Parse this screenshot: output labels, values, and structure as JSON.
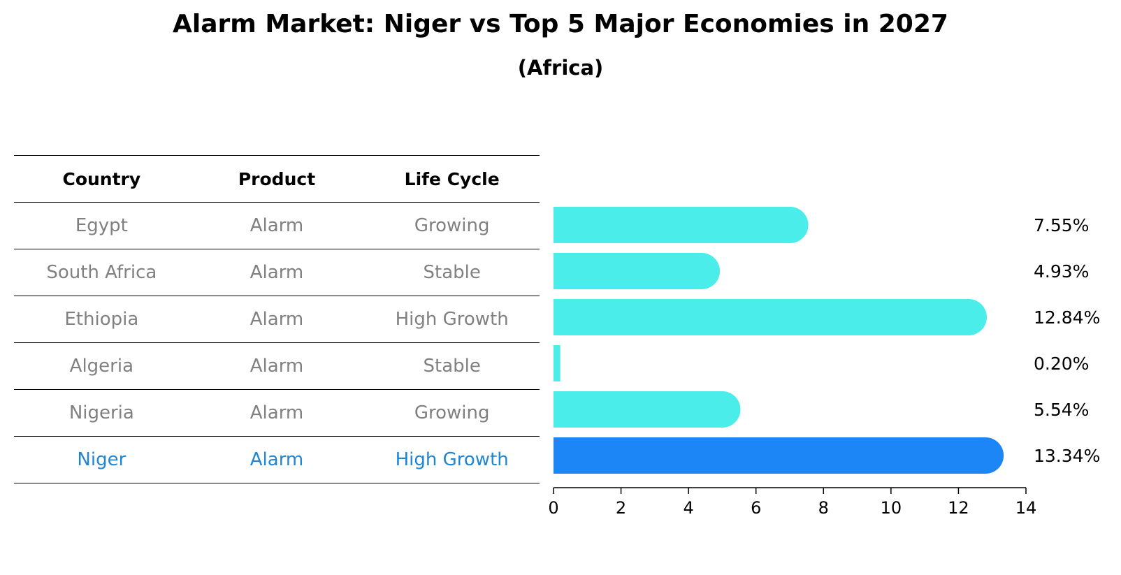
{
  "title": "Alarm Market: Niger vs Top 5 Major Economies in 2027",
  "subtitle": "(Africa)",
  "table": {
    "headers": [
      "Country",
      "Product",
      "Life Cycle"
    ],
    "rows": [
      {
        "country": "Egypt",
        "product": "Alarm",
        "life_cycle": "Growing"
      },
      {
        "country": "South Africa",
        "product": "Alarm",
        "life_cycle": "Stable"
      },
      {
        "country": "Ethiopia",
        "product": "Alarm",
        "life_cycle": "High Growth"
      },
      {
        "country": "Algeria",
        "product": "Alarm",
        "life_cycle": "Stable"
      },
      {
        "country": "Nigeria",
        "product": "Alarm",
        "life_cycle": "Growing"
      },
      {
        "country": "Niger",
        "product": "Alarm",
        "life_cycle": "High Growth"
      }
    ]
  },
  "chart_data": {
    "type": "bar",
    "orientation": "horizontal",
    "title": "Alarm Market: Niger vs Top 5 Major Economies in 2027",
    "subtitle": "(Africa)",
    "categories": [
      "Egypt",
      "South Africa",
      "Ethiopia",
      "Algeria",
      "Nigeria",
      "Niger"
    ],
    "values": [
      7.55,
      4.93,
      12.84,
      0.2,
      5.54,
      13.34
    ],
    "value_labels": [
      "7.55%",
      "4.93%",
      "12.84%",
      "0.20%",
      "5.54%",
      "13.34%"
    ],
    "highlight": "Niger",
    "xlim": [
      0,
      14
    ],
    "xticks": [
      0,
      2,
      4,
      6,
      8,
      10,
      12,
      14
    ],
    "xlabel": "",
    "ylabel": "",
    "grid": false,
    "colors": {
      "default": "#4aede9",
      "highlight": "#1c86f6"
    }
  }
}
